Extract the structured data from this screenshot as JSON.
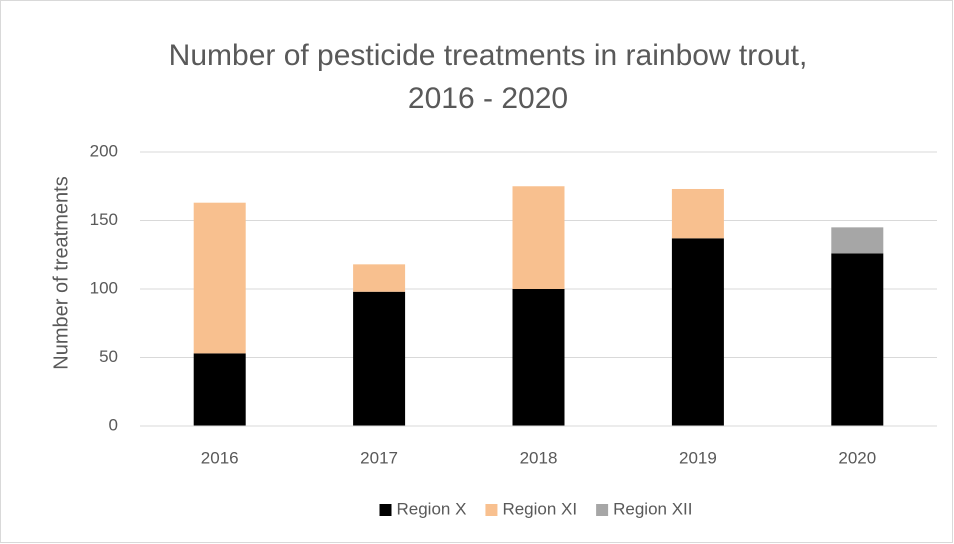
{
  "chart_data": {
    "type": "stacked_bar",
    "title": [
      "Number of pesticide treatments in rainbow trout,",
      "2016 - 2020"
    ],
    "ylabel": "Number of treatments",
    "categories": [
      "2016",
      "2017",
      "2018",
      "2019",
      "2020"
    ],
    "series": [
      {
        "name": "Region X",
        "color": "#000000",
        "values": [
          53,
          98,
          100,
          137,
          126
        ]
      },
      {
        "name": "Region XI",
        "color": "#f8c08f",
        "values": [
          110,
          20,
          75,
          36,
          0
        ]
      },
      {
        "name": "Region XII",
        "color": "#a6a6a6",
        "values": [
          0,
          0,
          0,
          0,
          19
        ]
      }
    ],
    "ylim": [
      0,
      200
    ],
    "yticks": [
      0,
      50,
      100,
      150,
      200
    ],
    "grid": true,
    "legend": "bottom"
  }
}
